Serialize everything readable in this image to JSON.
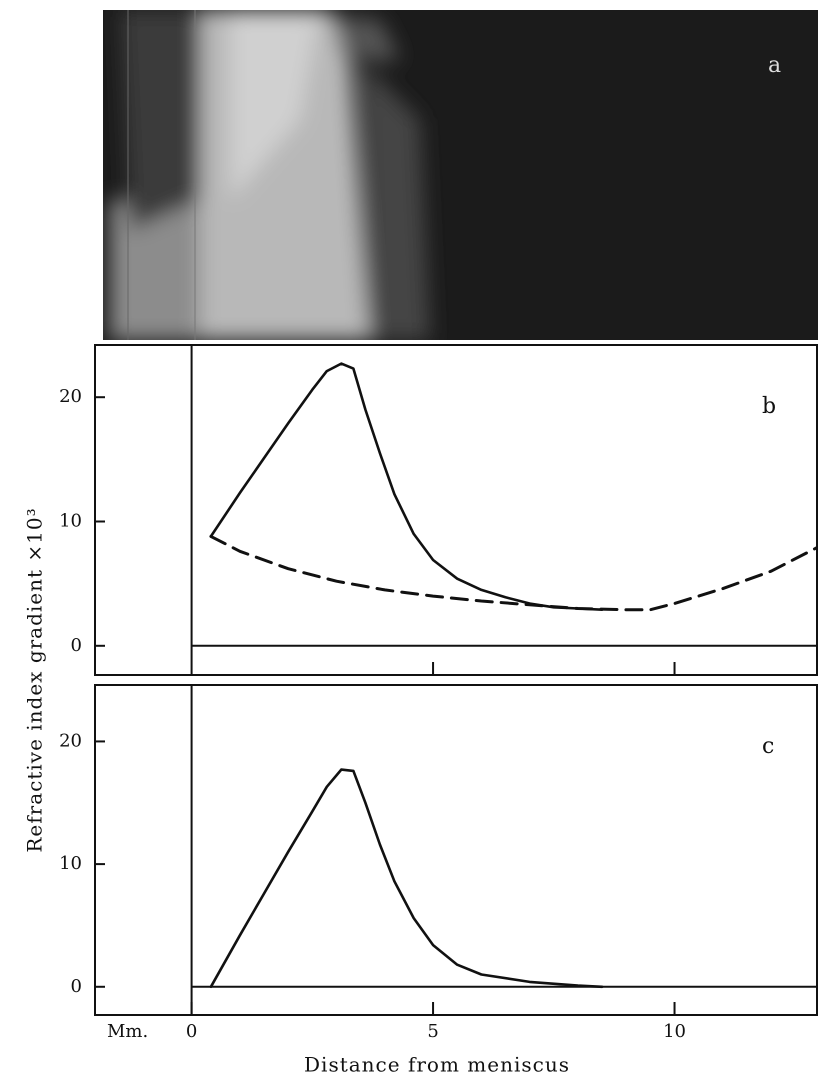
{
  "photo": {
    "label": "a"
  },
  "chart_data": [
    {
      "type": "line",
      "panel_label": "b",
      "xlim": [
        -2,
        12.95
      ],
      "ylim": [
        -2.35,
        24.2
      ],
      "xticks": [
        5,
        10
      ],
      "yticks": [
        0,
        10,
        20
      ],
      "series": [
        {
          "color": "#111111",
          "dash": false,
          "x": [
            0.4,
            1.0,
            1.5,
            2.0,
            2.5,
            2.8,
            3.1,
            3.35,
            3.6,
            3.9,
            4.2,
            4.6,
            5.0,
            5.5,
            6.0,
            6.5,
            7.0,
            7.5,
            8.0,
            8.5
          ],
          "values": [
            8.8,
            12.3,
            15.1,
            17.9,
            20.6,
            22.1,
            22.7,
            22.3,
            19.0,
            15.5,
            12.2,
            9.0,
            6.9,
            5.4,
            4.5,
            3.9,
            3.4,
            3.1,
            3.0,
            2.9
          ]
        },
        {
          "color": "#111111",
          "dash": true,
          "x": [
            0.4,
            1.0,
            2.0,
            3.0,
            4.0,
            5.0,
            6.0,
            7.0,
            8.0,
            9.0,
            9.5,
            10.0,
            11.0,
            12.0,
            12.95
          ],
          "values": [
            8.8,
            7.6,
            6.2,
            5.2,
            4.5,
            4.0,
            3.6,
            3.3,
            3.0,
            2.9,
            2.9,
            3.4,
            4.6,
            6.0,
            7.9
          ]
        }
      ]
    },
    {
      "type": "line",
      "panel_label": "c",
      "xlim": [
        -2,
        12.95
      ],
      "ylim": [
        -2.3,
        24.6
      ],
      "xticks": [
        0,
        5,
        10
      ],
      "yticks": [
        0,
        10,
        20
      ],
      "x_unit": "Mm.",
      "x_label": "Distance from meniscus",
      "y_label": "Refractive index gradient ×10³",
      "series": [
        {
          "color": "#111111",
          "dash": false,
          "x": [
            0.4,
            1.0,
            1.5,
            2.0,
            2.5,
            2.8,
            3.1,
            3.35,
            3.6,
            3.9,
            4.2,
            4.6,
            5.0,
            5.5,
            6.0,
            7.0,
            8.0,
            8.5
          ],
          "values": [
            0,
            4.2,
            7.6,
            11.0,
            14.3,
            16.3,
            17.7,
            17.6,
            15.0,
            11.6,
            8.6,
            5.6,
            3.4,
            1.8,
            1.0,
            0.4,
            0.1,
            0
          ]
        }
      ]
    }
  ]
}
